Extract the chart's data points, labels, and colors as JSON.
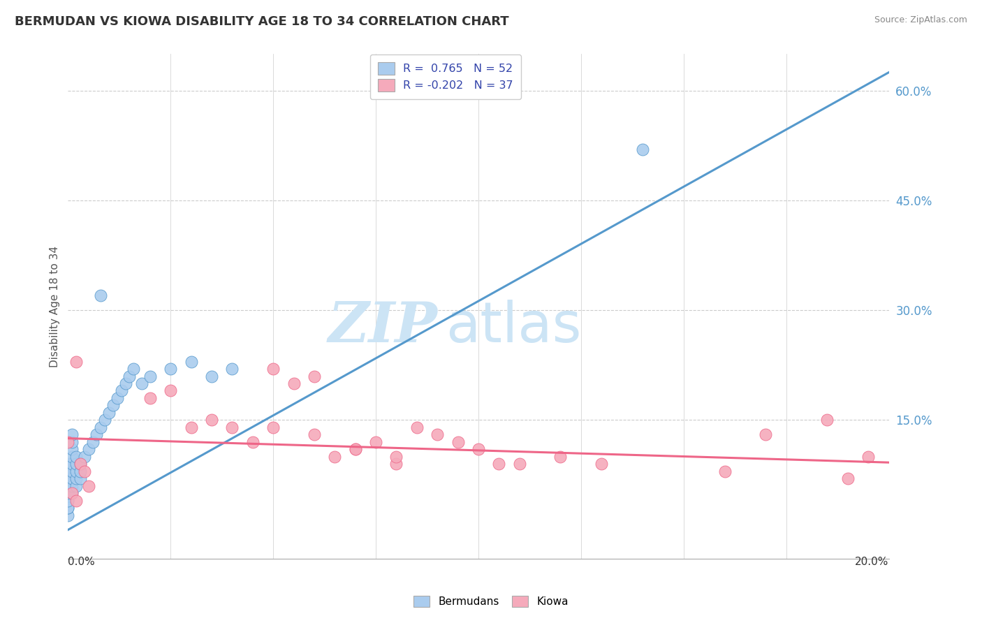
{
  "title": "BERMUDAN VS KIOWA DISABILITY AGE 18 TO 34 CORRELATION CHART",
  "source": "Source: ZipAtlas.com",
  "ylabel": "Disability Age 18 to 34",
  "ytick_labels": [
    "15.0%",
    "30.0%",
    "45.0%",
    "60.0%"
  ],
  "ytick_values": [
    0.15,
    0.3,
    0.45,
    0.6
  ],
  "xmin": 0.0,
  "xmax": 0.2,
  "ymin": -0.04,
  "ymax": 0.65,
  "legend_r1": "R =  0.765   N = 52",
  "legend_r2": "R = -0.202   N = 37",
  "blue_color": "#aaccee",
  "pink_color": "#f5aabb",
  "blue_line_color": "#5599cc",
  "pink_line_color": "#ee6688",
  "watermark_zip": "ZIP",
  "watermark_atlas": "atlas",
  "watermark_color": "#cce4f5",
  "blue_dots_x": [
    0.0,
    0.0,
    0.0,
    0.0,
    0.0,
    0.0,
    0.0,
    0.0,
    0.0,
    0.0,
    0.0,
    0.0,
    0.0,
    0.0,
    0.001,
    0.001,
    0.001,
    0.001,
    0.001,
    0.001,
    0.001,
    0.001,
    0.001,
    0.002,
    0.002,
    0.002,
    0.002,
    0.002,
    0.003,
    0.003,
    0.003,
    0.004,
    0.005,
    0.006,
    0.007,
    0.008,
    0.009,
    0.01,
    0.011,
    0.012,
    0.013,
    0.014,
    0.015,
    0.016,
    0.018,
    0.02,
    0.025,
    0.03,
    0.035,
    0.04,
    0.14,
    0.008
  ],
  "blue_dots_y": [
    0.02,
    0.03,
    0.04,
    0.05,
    0.06,
    0.07,
    0.08,
    0.03,
    0.04,
    0.05,
    0.06,
    0.07,
    0.08,
    0.09,
    0.05,
    0.06,
    0.07,
    0.08,
    0.09,
    0.1,
    0.11,
    0.12,
    0.13,
    0.06,
    0.07,
    0.08,
    0.09,
    0.1,
    0.07,
    0.08,
    0.09,
    0.1,
    0.11,
    0.12,
    0.13,
    0.14,
    0.15,
    0.16,
    0.17,
    0.18,
    0.19,
    0.2,
    0.21,
    0.22,
    0.2,
    0.21,
    0.22,
    0.23,
    0.21,
    0.22,
    0.52,
    0.32
  ],
  "pink_dots_x": [
    0.0,
    0.001,
    0.002,
    0.003,
    0.004,
    0.005,
    0.02,
    0.025,
    0.03,
    0.035,
    0.04,
    0.045,
    0.05,
    0.055,
    0.06,
    0.065,
    0.07,
    0.075,
    0.08,
    0.085,
    0.09,
    0.095,
    0.1,
    0.105,
    0.11,
    0.12,
    0.05,
    0.06,
    0.07,
    0.08,
    0.13,
    0.16,
    0.17,
    0.185,
    0.19,
    0.195,
    0.002
  ],
  "pink_dots_y": [
    0.12,
    0.05,
    0.23,
    0.09,
    0.08,
    0.06,
    0.18,
    0.19,
    0.14,
    0.15,
    0.14,
    0.12,
    0.22,
    0.2,
    0.21,
    0.1,
    0.11,
    0.12,
    0.09,
    0.14,
    0.13,
    0.12,
    0.11,
    0.09,
    0.09,
    0.1,
    0.14,
    0.13,
    0.11,
    0.1,
    0.09,
    0.08,
    0.13,
    0.15,
    0.07,
    0.1,
    0.04
  ],
  "blue_trend_x": [
    0.0,
    0.2
  ],
  "blue_trend_y": [
    0.0,
    0.625
  ],
  "pink_trend_x": [
    0.0,
    0.2
  ],
  "pink_trend_y": [
    0.125,
    0.092
  ]
}
